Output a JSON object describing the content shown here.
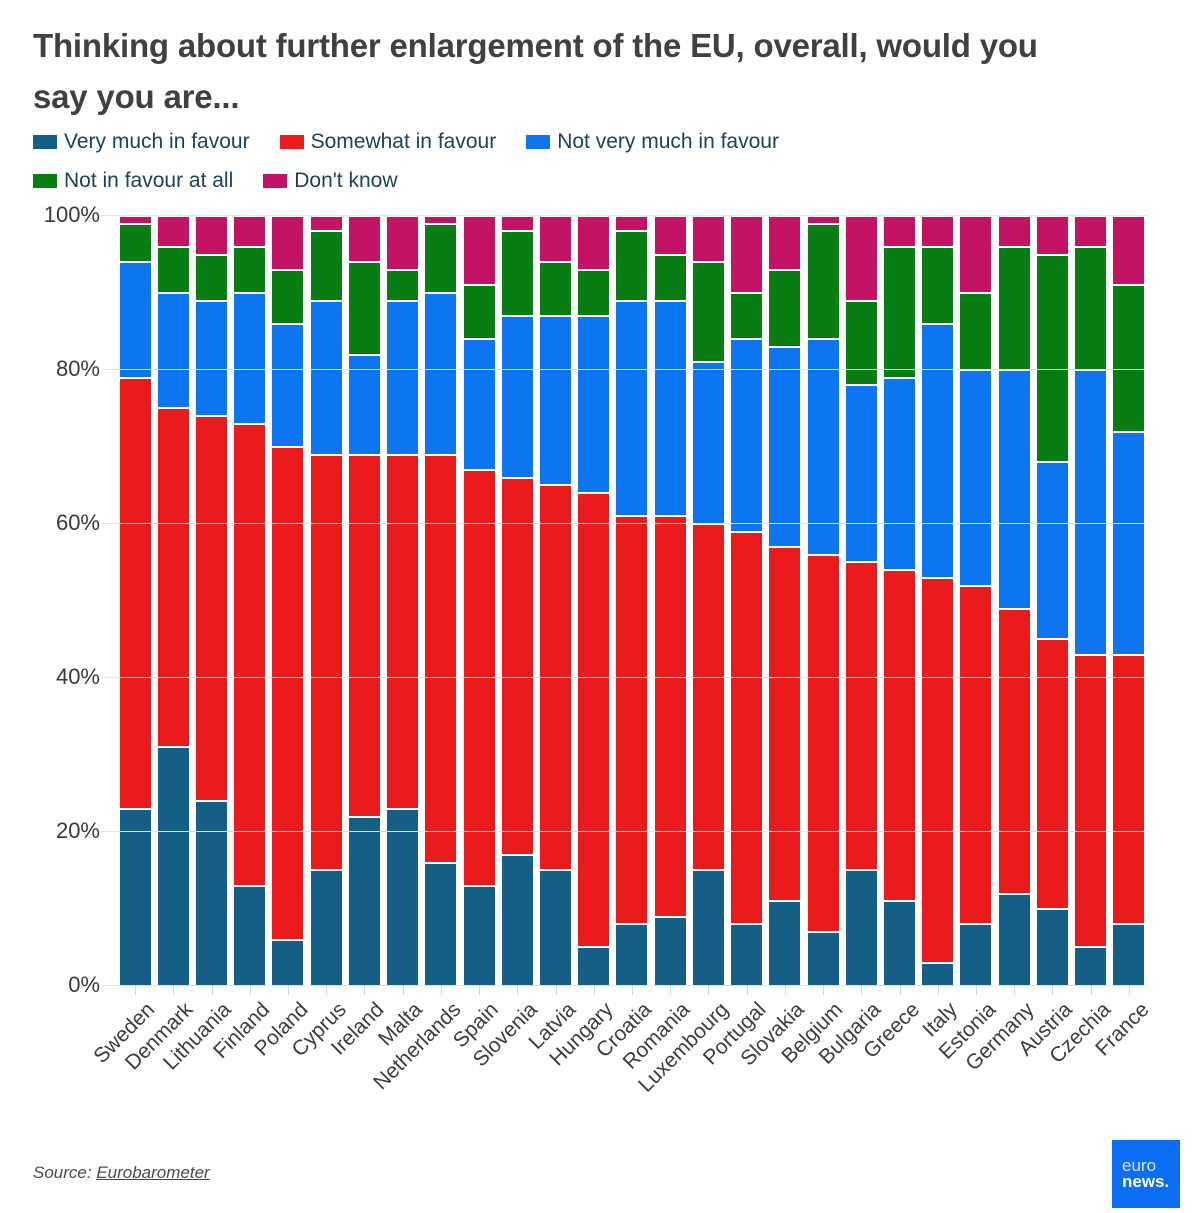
{
  "title": {
    "text": "Thinking about further enlargement of the EU, overall, would you say you are..."
  },
  "legend": {
    "rows": [
      [
        0,
        1,
        2
      ],
      [
        3,
        4
      ]
    ]
  },
  "chart_data": {
    "type": "bar",
    "stacked": true,
    "unit": "%",
    "title": "Thinking about further enlargement of the EU, overall, would you say you are...",
    "categories": [
      "Sweden",
      "Denmark",
      "Lithuania",
      "Finland",
      "Poland",
      "Cyprus",
      "Ireland",
      "Malta",
      "Netherlands",
      "Spain",
      "Slovenia",
      "Latvia",
      "Hungary",
      "Croatia",
      "Romania",
      "Luxembourg",
      "Portugal",
      "Slovakia",
      "Belgium",
      "Bulgaria",
      "Greece",
      "Italy",
      "Estonia",
      "Germany",
      "Austria",
      "Czechia",
      "France"
    ],
    "series": [
      {
        "name": "Very much in favour",
        "color": "#155f87",
        "values": [
          23,
          31,
          24,
          13,
          6,
          15,
          22,
          23,
          16,
          13,
          17,
          15,
          5,
          8,
          9,
          15,
          8,
          11,
          7,
          15,
          11,
          3,
          8,
          12,
          10,
          5,
          8
        ]
      },
      {
        "name": "Somewhat in favour",
        "color": "#ea1b1c",
        "values": [
          56,
          44,
          50,
          60,
          64,
          54,
          47,
          46,
          53,
          54,
          49,
          50,
          59,
          53,
          52,
          45,
          51,
          46,
          49,
          40,
          43,
          50,
          44,
          37,
          35,
          38,
          35
        ]
      },
      {
        "name": "Not very much in favour",
        "color": "#0d75f0",
        "values": [
          15,
          15,
          15,
          17,
          16,
          20,
          13,
          20,
          21,
          17,
          21,
          22,
          23,
          28,
          28,
          21,
          25,
          26,
          28,
          23,
          25,
          33,
          28,
          31,
          23,
          37,
          29
        ]
      },
      {
        "name": "Not in favour at all",
        "color": "#077d13",
        "values": [
          5,
          6,
          6,
          6,
          7,
          9,
          12,
          4,
          9,
          7,
          11,
          7,
          6,
          9,
          6,
          13,
          6,
          10,
          15,
          11,
          17,
          10,
          10,
          16,
          27,
          16,
          19
        ]
      },
      {
        "name": "Don't know",
        "color": "#c21364",
        "values": [
          1,
          4,
          5,
          4,
          7,
          2,
          6,
          7,
          1,
          9,
          2,
          6,
          7,
          2,
          5,
          6,
          10,
          7,
          1,
          11,
          4,
          4,
          10,
          4,
          5,
          4,
          9
        ]
      }
    ],
    "stack_order_bottom_to_top": [
      "Very much in favour",
      "Somewhat in favour",
      "Not very much in favour",
      "Not in favour at all",
      "Don't know"
    ],
    "y_axis": {
      "range": [
        0,
        100
      ],
      "grid": true,
      "ticks": [
        {
          "label": "100%",
          "value": 100
        },
        {
          "label": "80%",
          "value": 80
        },
        {
          "label": "60%",
          "value": 60
        },
        {
          "label": "40%",
          "value": 40
        },
        {
          "label": "20%",
          "value": 20
        },
        {
          "label": "0%",
          "value": 0
        }
      ]
    },
    "legend_position": "top"
  },
  "source": {
    "prefix": "Source: ",
    "link_text": "Eurobarometer"
  },
  "logo": {
    "line1": "euro",
    "line2": "news."
  }
}
